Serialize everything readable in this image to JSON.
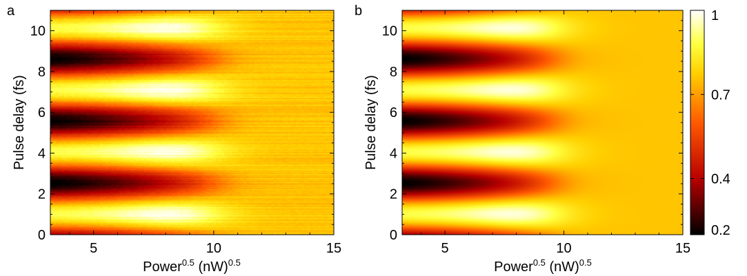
{
  "chart_data": [
    {
      "type": "heatmap",
      "panel_label": "a",
      "xlabel": {
        "base": "Power",
        "sup1": "0.5",
        "mid": " (nW)",
        "sup2": "0.5"
      },
      "ylabel": "Pulse delay (fs)",
      "xlim": [
        3.2,
        15
      ],
      "ylim": [
        0,
        11
      ],
      "xticks": [
        5,
        10,
        15
      ],
      "yticks": [
        0,
        2,
        4,
        6,
        8,
        10
      ],
      "fringe_period_fs": 3.05,
      "dark_centers_fs": [
        2.4,
        5.5,
        8.5
      ],
      "bright_centers_fs": [
        1.0,
        4.3,
        7.3,
        10.1
      ],
      "saturation_power": 11.5,
      "saturated_level": 0.7,
      "noisy": true
    },
    {
      "type": "heatmap",
      "panel_label": "b",
      "xlabel": {
        "base": "Power",
        "sup1": "0.5",
        "mid": " (nW)",
        "sup2": "0.5"
      },
      "ylabel": "Pulse delay (fs)",
      "xlim": [
        3.2,
        15
      ],
      "ylim": [
        0,
        11
      ],
      "xticks": [
        5,
        10,
        15
      ],
      "yticks": [
        0,
        2,
        4,
        6,
        8,
        10
      ],
      "fringe_period_fs": 3.05,
      "dark_centers_fs": [
        2.4,
        5.5,
        8.5
      ],
      "bright_centers_fs": [
        1.0,
        4.3,
        7.3,
        10.1
      ],
      "saturation_power": 11.0,
      "saturated_level": 0.7,
      "noisy": false
    }
  ],
  "colorbar": {
    "ticks": [
      1,
      0.7,
      0.4,
      0.2
    ],
    "tick_labels": [
      "1",
      "0.7",
      "0.4",
      "0.2"
    ],
    "colormap": "hot",
    "stops": [
      "#000000",
      "#ff0000",
      "#ffff00",
      "#ffffff"
    ]
  }
}
